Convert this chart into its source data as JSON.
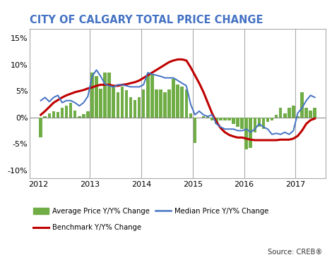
{
  "title": "CITY OF CALGARY TOTAL PRICE CHANGE",
  "title_color": "#4472C4",
  "source_text": "Source: CREB®",
  "bar_color": "#70AD47",
  "line_median_color": "#4472C4",
  "line_benchmark_color": "#C00000",
  "yticks": [
    -0.1,
    -0.05,
    0.0,
    0.05,
    0.1,
    0.15
  ],
  "ylim": [
    -0.115,
    0.168
  ],
  "xlim": [
    2011.83,
    2017.58
  ],
  "vline_years": [
    2013,
    2014,
    2015,
    2016,
    2017
  ],
  "bar_values": [
    -0.038,
    0.003,
    0.008,
    0.012,
    0.01,
    0.018,
    0.022,
    0.028,
    0.013,
    0.003,
    0.006,
    0.012,
    0.085,
    0.078,
    0.055,
    0.085,
    0.085,
    0.058,
    0.048,
    0.058,
    0.052,
    0.038,
    0.033,
    0.038,
    0.053,
    0.083,
    0.083,
    0.053,
    0.053,
    0.048,
    0.053,
    0.073,
    0.063,
    0.058,
    0.053,
    0.008,
    -0.048,
    0.0,
    0.002,
    0.002,
    -0.005,
    -0.012,
    -0.005,
    -0.005,
    -0.005,
    -0.012,
    -0.018,
    -0.022,
    -0.06,
    -0.058,
    -0.028,
    -0.018,
    -0.022,
    -0.008,
    -0.005,
    0.005,
    0.018,
    0.008,
    0.018,
    0.022,
    0.003,
    0.048,
    0.018,
    0.013,
    0.018
  ],
  "median_values": [
    0.032,
    0.038,
    0.03,
    0.038,
    0.042,
    0.028,
    0.032,
    0.032,
    0.028,
    0.022,
    0.028,
    0.04,
    0.078,
    0.09,
    0.078,
    0.063,
    0.06,
    0.058,
    0.062,
    0.062,
    0.06,
    0.058,
    0.058,
    0.058,
    0.062,
    0.085,
    0.082,
    0.08,
    0.078,
    0.075,
    0.075,
    0.075,
    0.07,
    0.065,
    0.06,
    0.025,
    0.005,
    0.012,
    0.005,
    0.002,
    0.005,
    -0.012,
    -0.018,
    -0.022,
    -0.022,
    -0.022,
    -0.025,
    -0.025,
    -0.022,
    -0.028,
    -0.022,
    -0.012,
    -0.018,
    -0.022,
    -0.032,
    -0.03,
    -0.032,
    -0.028,
    -0.032,
    -0.025,
    0.008,
    0.018,
    0.032,
    0.042,
    0.038
  ],
  "benchmark_values": [
    0.005,
    0.012,
    0.02,
    0.028,
    0.033,
    0.038,
    0.042,
    0.045,
    0.048,
    0.05,
    0.052,
    0.055,
    0.057,
    0.06,
    0.062,
    0.062,
    0.062,
    0.06,
    0.06,
    0.062,
    0.063,
    0.065,
    0.067,
    0.07,
    0.075,
    0.08,
    0.085,
    0.09,
    0.095,
    0.1,
    0.105,
    0.108,
    0.11,
    0.11,
    0.108,
    0.095,
    0.08,
    0.065,
    0.048,
    0.028,
    0.008,
    -0.008,
    -0.02,
    -0.028,
    -0.033,
    -0.036,
    -0.038,
    -0.038,
    -0.04,
    -0.042,
    -0.043,
    -0.043,
    -0.043,
    -0.043,
    -0.043,
    -0.043,
    -0.042,
    -0.042,
    -0.042,
    -0.04,
    -0.035,
    -0.025,
    -0.012,
    -0.005,
    -0.002
  ]
}
